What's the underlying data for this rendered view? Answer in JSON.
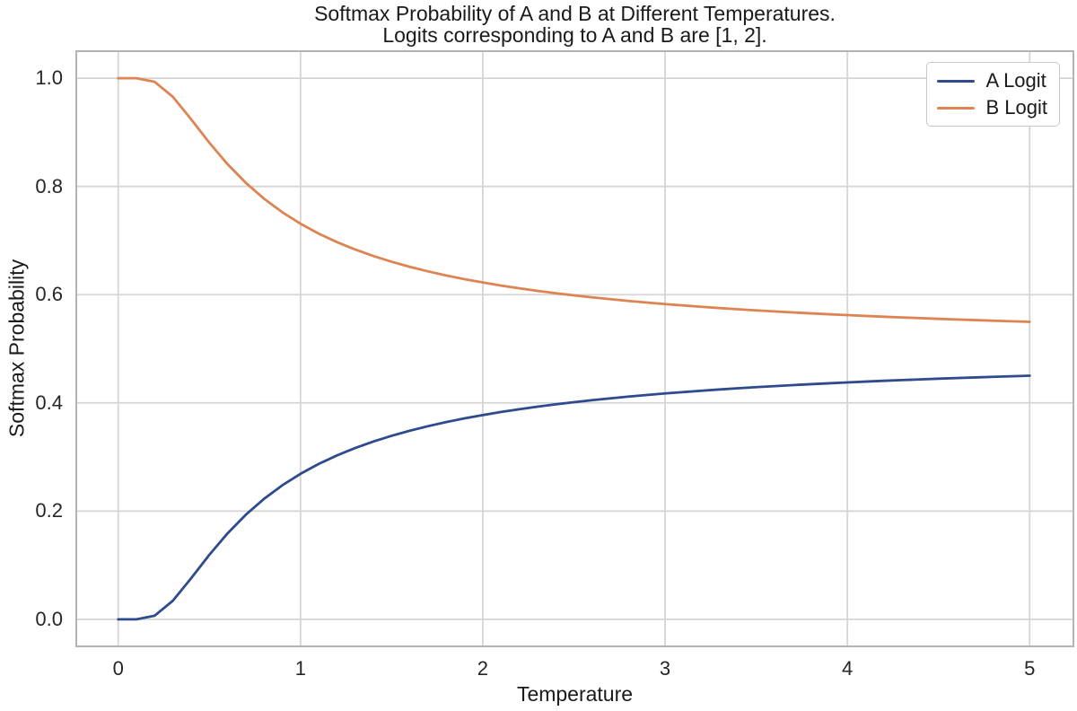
{
  "colors": {
    "background": "#ffffff",
    "grid": "#d5d5d5",
    "spine": "#b3b3b3",
    "text": "#1a1a1a",
    "series_a": "#2e4b8e",
    "series_b": "#dd8452"
  },
  "chart_data": {
    "type": "line",
    "title": "Softmax Probability of A and B at Different Temperatures.\nLogits corresponding to A and B are [1, 2].",
    "title_lines": [
      "Softmax Probability of A and B at Different Temperatures.",
      "Logits corresponding to A and B are [1, 2]."
    ],
    "xlabel": "Temperature",
    "ylabel": "Softmax Probability",
    "xlim": [
      -0.23,
      5.24
    ],
    "ylim": [
      -0.05,
      1.05
    ],
    "grid": true,
    "legend_position": "upper right",
    "x_ticks": {
      "values": [
        0,
        1,
        2,
        3,
        4,
        5
      ],
      "labels": [
        "0",
        "1",
        "2",
        "3",
        "4",
        "5"
      ]
    },
    "y_ticks": {
      "values": [
        0.0,
        0.2,
        0.4,
        0.6,
        0.8,
        1.0
      ],
      "labels": [
        "0.0",
        "0.2",
        "0.4",
        "0.6",
        "0.8",
        "1.0"
      ]
    },
    "x": [
      0,
      0.1,
      0.2,
      0.3,
      0.4,
      0.5,
      0.6,
      0.7,
      0.8,
      0.9,
      1.0,
      1.1,
      1.2,
      1.3,
      1.4,
      1.5,
      1.6,
      1.7,
      1.8,
      1.9,
      2.0,
      2.1,
      2.2,
      2.3,
      2.4,
      2.5,
      2.6,
      2.7,
      2.8,
      2.9,
      3.0,
      3.1,
      3.2,
      3.3,
      3.4,
      3.5,
      3.6,
      3.7,
      3.8,
      3.9,
      4.0,
      4.1,
      4.2,
      4.3,
      4.4,
      4.5,
      4.6,
      4.7,
      4.8,
      4.9,
      5.0
    ],
    "series": [
      {
        "name": "A Logit",
        "color": "#2e4b8e",
        "values": [
          0.0,
          0.0,
          0.0067,
          0.0344,
          0.0759,
          0.1192,
          0.1589,
          0.1933,
          0.2227,
          0.2477,
          0.2689,
          0.2872,
          0.3029,
          0.3166,
          0.3286,
          0.3392,
          0.3486,
          0.357,
          0.3646,
          0.3714,
          0.3775,
          0.3832,
          0.3883,
          0.393,
          0.3973,
          0.4013,
          0.405,
          0.4084,
          0.4116,
          0.4146,
          0.4174,
          0.42,
          0.4225,
          0.4248,
          0.427,
          0.4291,
          0.431,
          0.4328,
          0.4346,
          0.4362,
          0.4378,
          0.4393,
          0.4408,
          0.4421,
          0.4434,
          0.4447,
          0.4459,
          0.447,
          0.4481,
          0.4492,
          0.4502
        ]
      },
      {
        "name": "B Logit",
        "color": "#dd8452",
        "values": [
          1.0,
          1.0,
          0.9933,
          0.9656,
          0.9241,
          0.8808,
          0.8411,
          0.8067,
          0.7773,
          0.7523,
          0.7311,
          0.7128,
          0.6971,
          0.6834,
          0.6714,
          0.6608,
          0.6514,
          0.643,
          0.6354,
          0.6286,
          0.6225,
          0.6168,
          0.6117,
          0.607,
          0.6027,
          0.5987,
          0.595,
          0.5916,
          0.5884,
          0.5854,
          0.5826,
          0.58,
          0.5775,
          0.5752,
          0.573,
          0.5709,
          0.569,
          0.5672,
          0.5654,
          0.5638,
          0.5622,
          0.5607,
          0.5592,
          0.5579,
          0.5566,
          0.5553,
          0.5541,
          0.553,
          0.5519,
          0.5508,
          0.5498
        ]
      }
    ]
  }
}
